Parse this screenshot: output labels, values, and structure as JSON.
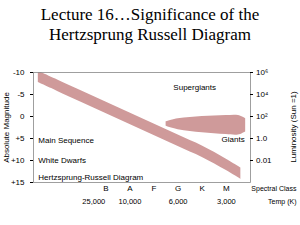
{
  "chart_data": {
    "type": "area",
    "title": "Lecture 16…Significance of the Hertzsprung Russell Diagram",
    "ylabel": "Absolute Magnitude",
    "y2label": "Luminosity (Sun =1)",
    "xlabel": "Spectral Class",
    "x2label": "Temp (K)",
    "xlim": [
      -2,
      7
    ],
    "xticks": [
      {
        "value": 1,
        "label": "B"
      },
      {
        "value": 2,
        "label": "A"
      },
      {
        "value": 3,
        "label": "F"
      },
      {
        "value": 4,
        "label": "G"
      },
      {
        "value": 5,
        "label": "K"
      },
      {
        "value": 6,
        "label": "M"
      }
    ],
    "x2ticks": [
      {
        "value": 0.5,
        "label": "25,000"
      },
      {
        "value": 2,
        "label": "10,000"
      },
      {
        "value": 4,
        "label": "6,000"
      },
      {
        "value": 6,
        "label": "3,000"
      }
    ],
    "ylim": [
      15,
      -10
    ],
    "yticks": [
      -10,
      -5,
      0,
      {
        "value": 5,
        "label": "+5"
      },
      {
        "value": 10,
        "label": "+10"
      },
      {
        "value": 15,
        "label": "+15"
      }
    ],
    "y2lim": [
      0.0001,
      1000000
    ],
    "y2ticks": [
      {
        "value": 1000000,
        "label": "10⁶"
      },
      {
        "value": 10000,
        "label": "10⁴"
      },
      {
        "value": 100,
        "label": "10²"
      },
      {
        "value": 1,
        "label": "1.0"
      },
      {
        "value": 0.01,
        "label": "0.01"
      }
    ],
    "grid": false,
    "series": [
      {
        "color": "#cf9a9a",
        "x": [
          -1.8,
          -1,
          0,
          1,
          2,
          3,
          4,
          5,
          6,
          6.6
        ],
        "top": [
          -10.3,
          -8.3,
          -5.8,
          -3.3,
          -0.8,
          1.7,
          4.2,
          6.7,
          9.7,
          11.7
        ],
        "bottom": [
          -7.7,
          -5.7,
          -3.2,
          -0.7,
          1.8,
          4.3,
          6.8,
          9.3,
          12.3,
          14.3
        ]
      },
      {
        "color": "#cf9a9a",
        "x": [
          3.5,
          4,
          4.5,
          5,
          5.5,
          6,
          6.5,
          6.8
        ],
        "top": [
          1.2,
          0.5,
          0.2,
          0,
          -0.1,
          -0.2,
          -0.2,
          0.5
        ],
        "bottom": [
          2.2,
          3,
          3.4,
          3.7,
          3.9,
          4.1,
          4.2,
          3.5
        ]
      }
    ],
    "annotations": [
      {
        "text": "Supergiants",
        "x": 3.8,
        "y": -6.5
      },
      {
        "text": "Giants",
        "x": 5.8,
        "y": 5.3
      },
      {
        "text": "Main Sequence",
        "x": -1.8,
        "y": 5.5
      },
      {
        "text": "White Dwarfs",
        "x": -1.8,
        "y": 10
      },
      {
        "text": "Hertzsprung-Russell Diagram",
        "x": -1.8,
        "y": 13.9
      }
    ]
  }
}
